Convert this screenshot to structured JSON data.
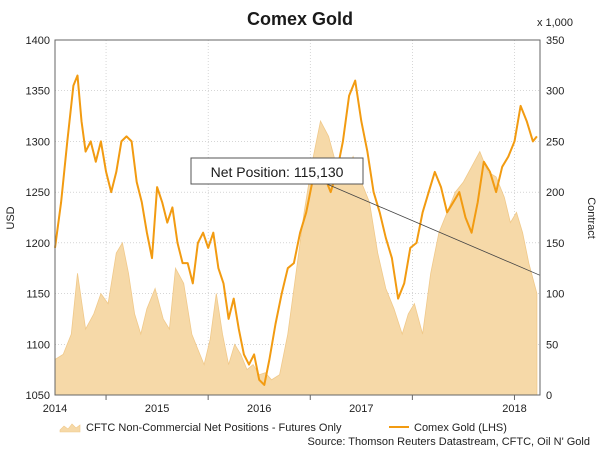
{
  "chart_data": {
    "type": "line",
    "title": "Comex Gold",
    "ylabel_left": "USD",
    "ylabel_right": "Contract",
    "right_axis_unit": "x 1,000",
    "x_ticks": [
      "2014",
      "2015",
      "2016",
      "2017",
      "2018"
    ],
    "y_left": {
      "min": 1050,
      "max": 1400,
      "ticks": [
        "1050",
        "1100",
        "1150",
        "1200",
        "1250",
        "1300",
        "1350",
        "1400"
      ]
    },
    "y_right": {
      "min": 0,
      "max": 350,
      "ticks": [
        "0",
        "50",
        "100",
        "150",
        "200",
        "250",
        "300",
        "350"
      ]
    },
    "grid": true,
    "legend": [
      {
        "name": "CFTC Non-Commercial Net Positions - Futures Only",
        "color": "#f6d9a8"
      },
      {
        "name": "Comex Gold (LHS)",
        "color": "#f29b11"
      }
    ],
    "annotation": "Net Position: 115,130",
    "source": "Source: Thomson Reuters Datastream, CFTC, Oil N' Gold",
    "series": [
      {
        "name": "CFTC Non-Commercial Net Positions - Futures Only",
        "axis": "right",
        "type": "area",
        "color": "#f6d9a8",
        "x": [
          2013.5,
          2013.58,
          2013.66,
          2013.72,
          2013.8,
          2013.88,
          2013.95,
          2014.02,
          2014.1,
          2014.16,
          2014.22,
          2014.28,
          2014.34,
          2014.4,
          2014.48,
          2014.56,
          2014.62,
          2014.68,
          2014.76,
          2014.84,
          2014.9,
          2014.96,
          2015.02,
          2015.08,
          2015.14,
          2015.2,
          2015.26,
          2015.32,
          2015.38,
          2015.44,
          2015.5,
          2015.56,
          2015.62,
          2015.7,
          2015.78,
          2015.86,
          2015.94,
          2016.02,
          2016.1,
          2016.18,
          2016.26,
          2016.34,
          2016.42,
          2016.5,
          2016.58,
          2016.66,
          2016.74,
          2016.82,
          2016.9,
          2016.96,
          2017.02,
          2017.1,
          2017.18,
          2017.26,
          2017.34,
          2017.42,
          2017.5,
          2017.58,
          2017.66,
          2017.74,
          2017.82,
          2017.9,
          2017.96,
          2018.02,
          2018.08,
          2018.14,
          2018.22
        ],
        "values": [
          35,
          40,
          60,
          120,
          65,
          80,
          100,
          90,
          140,
          150,
          120,
          80,
          60,
          85,
          105,
          75,
          65,
          125,
          110,
          60,
          45,
          30,
          55,
          100,
          60,
          30,
          50,
          40,
          25,
          30,
          20,
          22,
          15,
          20,
          60,
          120,
          180,
          230,
          270,
          255,
          225,
          215,
          235,
          210,
          190,
          140,
          105,
          85,
          60,
          80,
          90,
          60,
          120,
          160,
          180,
          200,
          210,
          225,
          240,
          220,
          215,
          195,
          170,
          180,
          160,
          130,
          100
        ]
      },
      {
        "name": "Comex Gold (LHS)",
        "axis": "left",
        "type": "line",
        "color": "#f29b11",
        "x": [
          2013.5,
          2013.56,
          2013.62,
          2013.68,
          2013.72,
          2013.76,
          2013.8,
          2013.85,
          2013.9,
          2013.95,
          2014.0,
          2014.05,
          2014.1,
          2014.15,
          2014.2,
          2014.25,
          2014.3,
          2014.35,
          2014.4,
          2014.45,
          2014.5,
          2014.55,
          2014.6,
          2014.65,
          2014.7,
          2014.75,
          2014.8,
          2014.85,
          2014.9,
          2014.95,
          2015.0,
          2015.05,
          2015.1,
          2015.15,
          2015.2,
          2015.25,
          2015.3,
          2015.35,
          2015.4,
          2015.45,
          2015.5,
          2015.55,
          2015.6,
          2015.66,
          2015.72,
          2015.78,
          2015.84,
          2015.9,
          2015.96,
          2016.02,
          2016.08,
          2016.14,
          2016.2,
          2016.26,
          2016.32,
          2016.38,
          2016.44,
          2016.5,
          2016.56,
          2016.62,
          2016.68,
          2016.74,
          2016.8,
          2016.86,
          2016.92,
          2016.98,
          2017.04,
          2017.1,
          2017.16,
          2017.22,
          2017.28,
          2017.34,
          2017.4,
          2017.46,
          2017.52,
          2017.58,
          2017.64,
          2017.7,
          2017.76,
          2017.82,
          2017.88,
          2017.94,
          2018.0,
          2018.06,
          2018.12,
          2018.18,
          2018.22
        ],
        "values": [
          1195,
          1240,
          1300,
          1355,
          1365,
          1320,
          1290,
          1300,
          1280,
          1300,
          1270,
          1250,
          1270,
          1300,
          1305,
          1300,
          1260,
          1240,
          1210,
          1185,
          1255,
          1240,
          1220,
          1235,
          1200,
          1180,
          1180,
          1160,
          1200,
          1210,
          1195,
          1210,
          1175,
          1160,
          1125,
          1145,
          1115,
          1090,
          1080,
          1090,
          1065,
          1060,
          1085,
          1120,
          1150,
          1175,
          1180,
          1210,
          1230,
          1260,
          1275,
          1265,
          1250,
          1270,
          1300,
          1345,
          1360,
          1320,
          1290,
          1250,
          1230,
          1205,
          1185,
          1145,
          1160,
          1195,
          1200,
          1230,
          1250,
          1270,
          1255,
          1230,
          1240,
          1250,
          1225,
          1210,
          1240,
          1280,
          1270,
          1250,
          1275,
          1285,
          1300,
          1335,
          1320,
          1300,
          1305
        ]
      }
    ],
    "trendline": {
      "x": [
        2016.0,
        2018.25
      ],
      "y_right": [
        215,
        118
      ]
    }
  }
}
